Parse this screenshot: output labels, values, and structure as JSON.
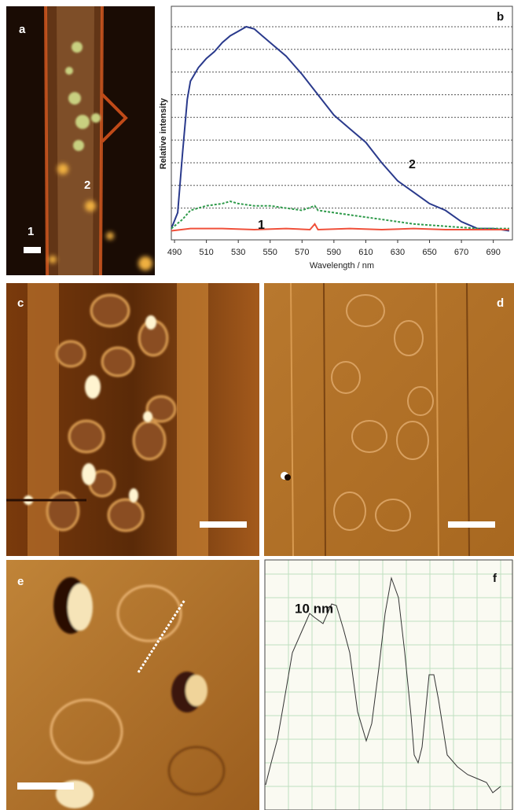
{
  "panels": [
    {
      "label": "a",
      "markers": [
        "1",
        "2"
      ]
    },
    {
      "label": "c"
    },
    {
      "label": "d"
    },
    {
      "label": "e"
    }
  ],
  "chart_data": [
    {
      "type": "line",
      "panel_label": "b",
      "y_label": "Relative intensity",
      "x_label": "Wavelength / nm",
      "xlim": [
        488,
        702
      ],
      "xticks": [
        490,
        510,
        530,
        550,
        570,
        590,
        610,
        630,
        650,
        670,
        690
      ],
      "ylim": [
        -0.4,
        9.9
      ],
      "ygrid": [
        1,
        2,
        3,
        4,
        5,
        6,
        7,
        8,
        9
      ],
      "series": [
        {
          "name": "2",
          "color": "#2a3a8c",
          "dash": false,
          "x": [
            488,
            492,
            495,
            498,
            500,
            505,
            510,
            515,
            520,
            525,
            530,
            535,
            540,
            545,
            550,
            560,
            570,
            580,
            590,
            600,
            610,
            620,
            630,
            640,
            650,
            660,
            670,
            680,
            690,
            700
          ],
          "values": [
            0.1,
            0.8,
            3.4,
            5.8,
            6.6,
            7.2,
            7.6,
            7.9,
            8.3,
            8.6,
            8.8,
            9.0,
            8.9,
            8.6,
            8.3,
            7.7,
            6.9,
            6.0,
            5.1,
            4.5,
            3.9,
            3.0,
            2.2,
            1.7,
            1.2,
            0.9,
            0.4,
            0.1,
            0.1,
            0.0
          ]
        },
        {
          "color": "#2e9a4a",
          "dash": true,
          "x": [
            488,
            495,
            500,
            510,
            520,
            525,
            530,
            540,
            550,
            560,
            570,
            578,
            580,
            590,
            600,
            620,
            640,
            660,
            680,
            700
          ],
          "values": [
            0.1,
            0.5,
            0.9,
            1.1,
            1.2,
            1.3,
            1.2,
            1.1,
            1.1,
            1.0,
            0.9,
            1.1,
            0.9,
            0.8,
            0.7,
            0.5,
            0.3,
            0.2,
            0.1,
            0.1
          ]
        },
        {
          "name": "1",
          "color": "#f0503a",
          "dash": false,
          "x": [
            488,
            500,
            520,
            540,
            560,
            575,
            578,
            580,
            600,
            620,
            640,
            660,
            680,
            700
          ],
          "values": [
            0.0,
            0.1,
            0.1,
            0.05,
            0.1,
            0.05,
            0.3,
            0.05,
            0.1,
            0.05,
            0.1,
            0.05,
            0.05,
            0.05
          ]
        }
      ]
    },
    {
      "type": "line",
      "panel_label": "f",
      "annotation": "10 nm",
      "xlim": [
        0,
        315
      ],
      "ylim": [
        0,
        318
      ],
      "xgrid": [
        30,
        60,
        90,
        120,
        150,
        180,
        210,
        240,
        270,
        300
      ],
      "ygrid": [
        30,
        60,
        90,
        120,
        150,
        180,
        210,
        240,
        270,
        300
      ],
      "series": [
        {
          "color": "#333333",
          "dash": false,
          "x": [
            1,
            8,
            16,
            23,
            35,
            46,
            57,
            63,
            74,
            85,
            91,
            100,
            108,
            118,
            129,
            136,
            145,
            153,
            161,
            170,
            178,
            186,
            190,
            195,
            200,
            209,
            215,
            221,
            232,
            245,
            258,
            270,
            282,
            290,
            300
          ],
          "values": [
            32,
            60,
            90,
            130,
            200,
            225,
            250,
            245,
            237,
            262,
            260,
            230,
            200,
            125,
            88,
            110,
            180,
            250,
            295,
            270,
            200,
            120,
            70,
            60,
            80,
            172,
            172,
            140,
            70,
            55,
            45,
            40,
            35,
            22,
            30
          ]
        }
      ]
    }
  ]
}
